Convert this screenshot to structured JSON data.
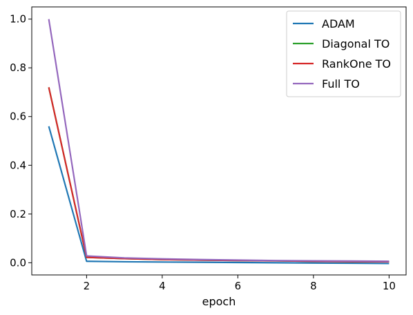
{
  "chart_data": {
    "type": "line",
    "title": "",
    "xlabel": "epoch",
    "ylabel": "",
    "xlim": [
      0.55,
      10.45
    ],
    "ylim": [
      -0.05,
      1.05
    ],
    "xticks": [
      2,
      4,
      6,
      8,
      10
    ],
    "xtick_labels": [
      "2",
      "4",
      "6",
      "8",
      "10"
    ],
    "yticks": [
      0.0,
      0.2,
      0.4,
      0.6,
      0.8,
      1.0
    ],
    "ytick_labels": [
      "0.0",
      "0.2",
      "0.4",
      "0.6",
      "0.8",
      "1.0"
    ],
    "grid": false,
    "legend_position": "top-right",
    "x": [
      1,
      2,
      3,
      4,
      5,
      6,
      7,
      8,
      9,
      10
    ],
    "series": [
      {
        "name": "ADAM",
        "color": "#1f77b4",
        "values": [
          0.56,
          0.006,
          0.004,
          0.003,
          0.002,
          0.001,
          0.0,
          -0.001,
          -0.002,
          -0.003
        ]
      },
      {
        "name": "Diagonal TO",
        "color": "#2ca02c",
        "values": [
          0.72,
          0.022,
          0.017,
          0.013,
          0.011,
          0.009,
          0.008,
          0.006,
          0.005,
          0.004
        ]
      },
      {
        "name": "RankOne TO",
        "color": "#d62728",
        "values": [
          0.72,
          0.022,
          0.017,
          0.013,
          0.011,
          0.009,
          0.008,
          0.006,
          0.005,
          0.004
        ]
      },
      {
        "name": "Full TO",
        "color": "#9467bd",
        "values": [
          1.0,
          0.028,
          0.02,
          0.016,
          0.013,
          0.011,
          0.009,
          0.008,
          0.007,
          0.006
        ]
      }
    ]
  }
}
